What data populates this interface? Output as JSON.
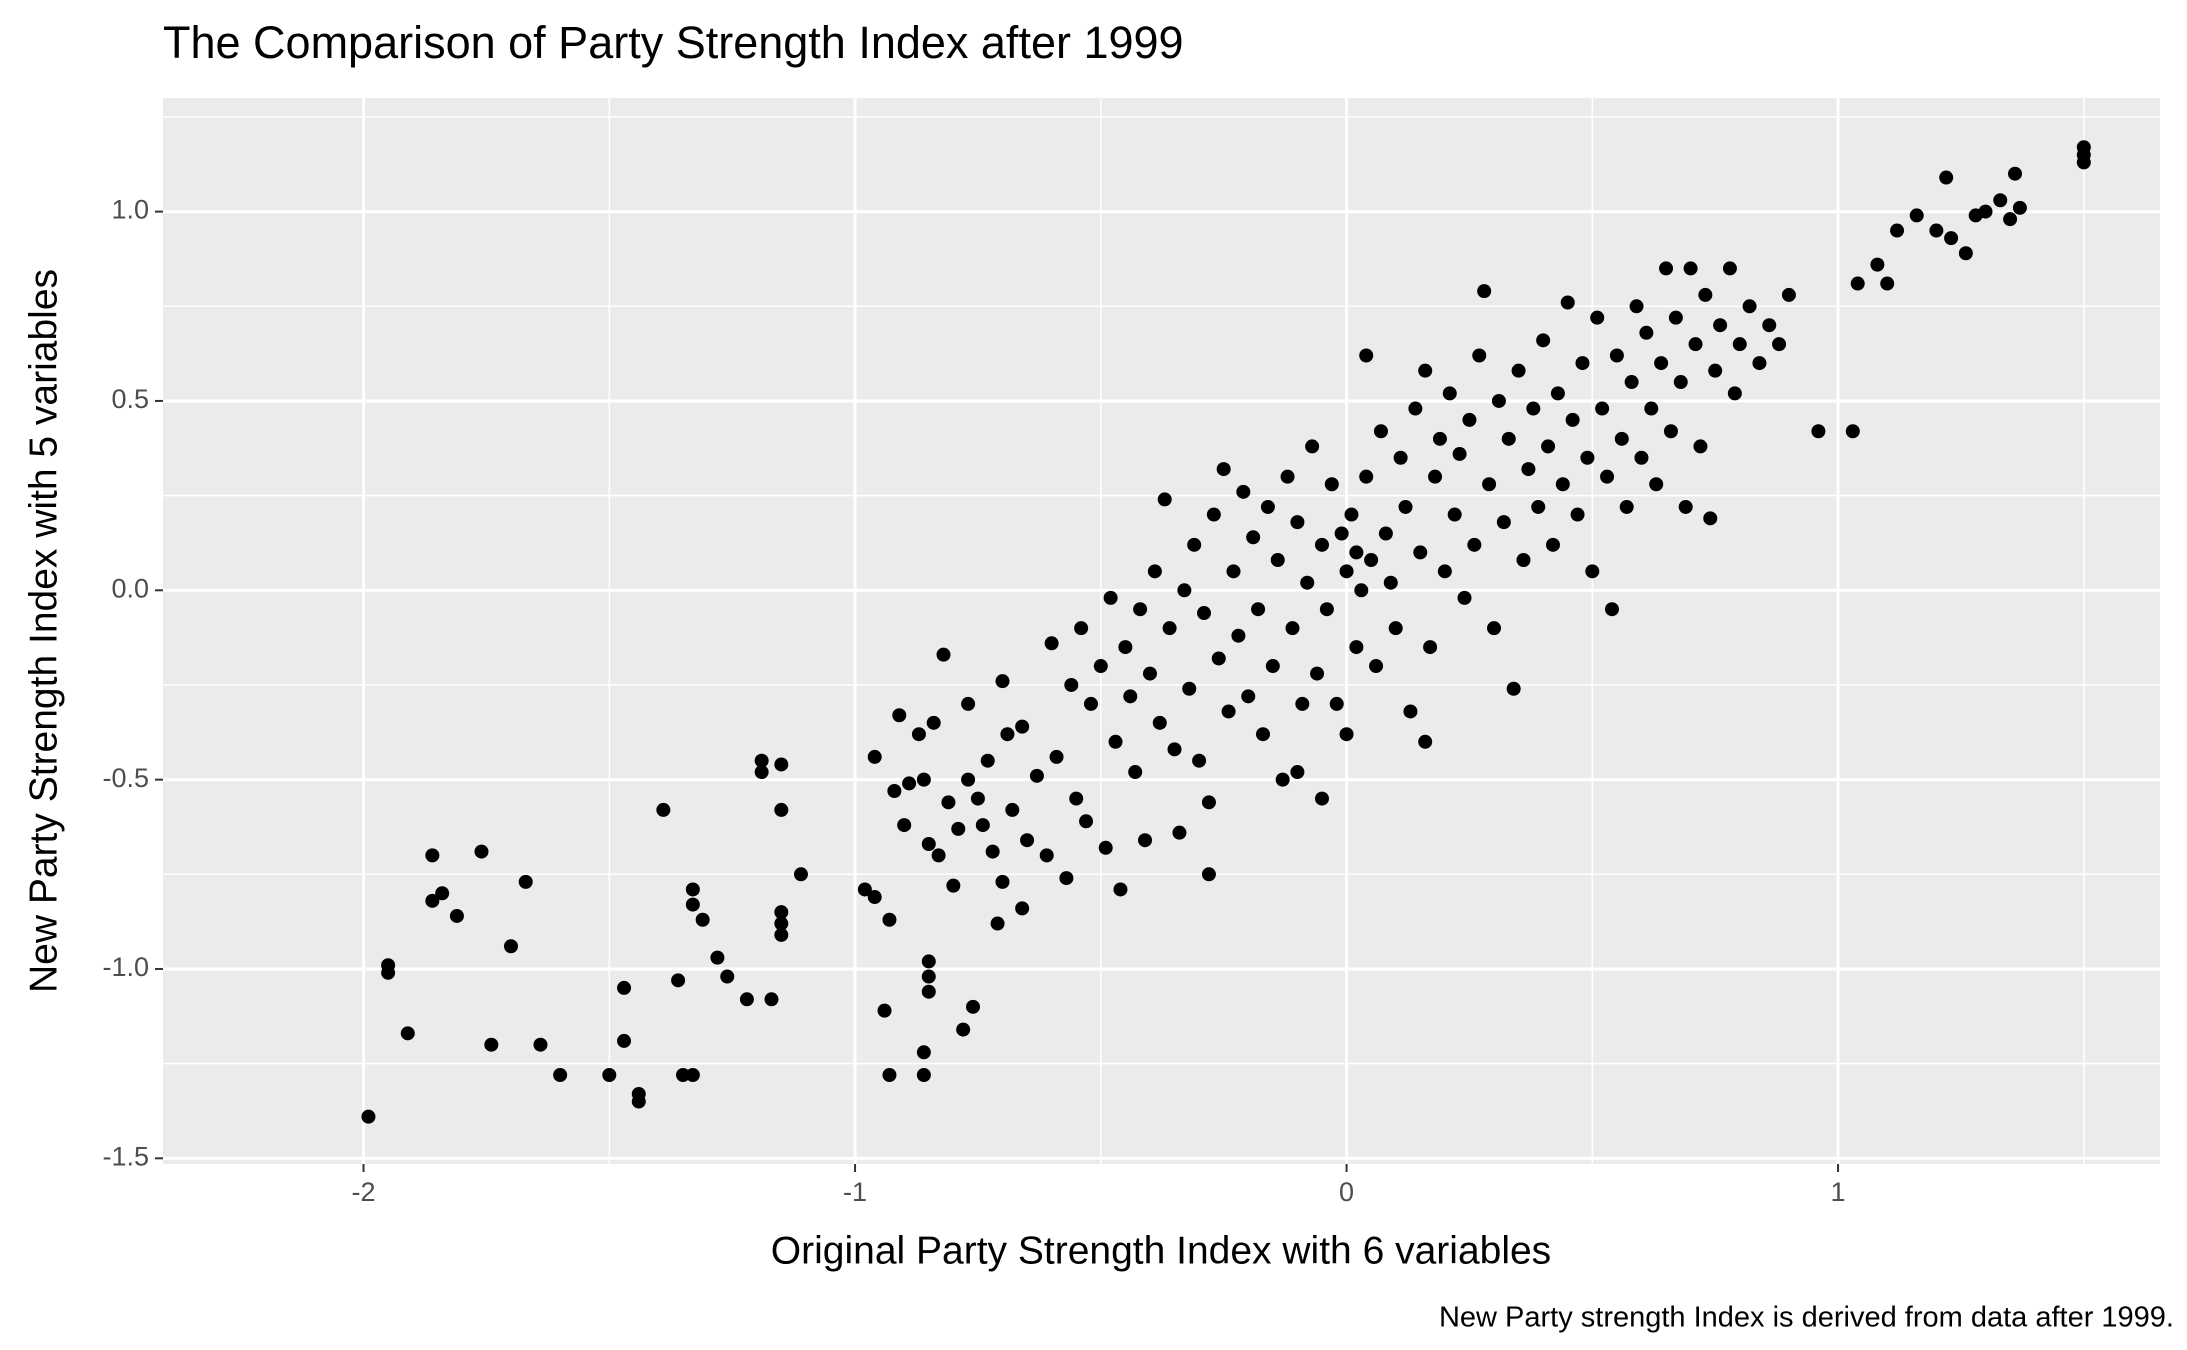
{
  "chart_data": {
    "type": "scatter",
    "title": "The Comparison of Party Strength Index after 1999",
    "x_label": "Original Party Strength Index with 6 variables",
    "y_label": "New Party Strength Index with 5 variables",
    "caption": "New Party strength Index is derived from data after 1999.",
    "color": "#000000",
    "grid": true,
    "xlim": [
      -2.408,
      1.655
    ],
    "ylim": [
      -1.515,
      1.3
    ],
    "xticks": [
      -2,
      -1,
      0,
      1
    ],
    "yticks": [
      -1.5,
      {
        "value": -1.0,
        "label": "-1.0"
      },
      -0.5,
      {
        "value": 0.0,
        "label": "0.0"
      },
      0.5,
      {
        "value": 1.0,
        "label": "1.0"
      }
    ],
    "x": [
      -1.99,
      -1.95,
      -1.95,
      -1.91,
      -1.86,
      -1.86,
      -1.84,
      -1.81,
      -1.76,
      -1.74,
      -1.7,
      -1.67,
      -1.64,
      -1.6,
      -1.5,
      -1.47,
      -1.47,
      -1.44,
      -1.44,
      -1.39,
      -1.36,
      -1.35,
      -1.33,
      -1.33,
      -1.33,
      -1.31,
      -1.28,
      -1.26,
      -1.22,
      -1.19,
      -1.19,
      -1.17,
      -1.15,
      -1.15,
      -1.15,
      -1.15,
      -1.15,
      -1.11,
      -0.98,
      -0.96,
      -0.96,
      -0.94,
      -0.93,
      -0.93,
      -0.92,
      -0.91,
      -0.9,
      -0.89,
      -0.87,
      -0.86,
      -0.86,
      -0.86,
      -0.85,
      -0.85,
      -0.85,
      -0.85,
      -0.84,
      -0.83,
      -0.82,
      -0.81,
      -0.8,
      -0.79,
      -0.78,
      -0.77,
      -0.77,
      -0.76,
      -0.75,
      -0.74,
      -0.73,
      -0.72,
      -0.71,
      -0.7,
      -0.7,
      -0.69,
      -0.68,
      -0.66,
      -0.66,
      -0.65,
      -0.63,
      -0.61,
      -0.6,
      -0.59,
      -0.57,
      -0.56,
      -0.55,
      -0.54,
      -0.53,
      -0.52,
      -0.5,
      -0.49,
      -0.48,
      -0.47,
      -0.46,
      -0.45,
      -0.44,
      -0.43,
      -0.42,
      -0.41,
      -0.4,
      -0.39,
      -0.38,
      -0.37,
      -0.36,
      -0.35,
      -0.34,
      -0.33,
      -0.32,
      -0.31,
      -0.3,
      -0.29,
      -0.28,
      -0.28,
      -0.27,
      -0.26,
      -0.25,
      -0.24,
      -0.23,
      -0.22,
      -0.21,
      -0.2,
      -0.19,
      -0.18,
      -0.17,
      -0.16,
      -0.15,
      -0.14,
      -0.13,
      -0.12,
      -0.11,
      -0.1,
      -0.1,
      -0.09,
      -0.08,
      -0.07,
      -0.06,
      -0.05,
      -0.05,
      -0.04,
      -0.03,
      -0.02,
      -0.01,
      0.0,
      0.0,
      0.01,
      0.02,
      0.02,
      0.03,
      0.04,
      0.04,
      0.05,
      0.06,
      0.07,
      0.08,
      0.09,
      0.1,
      0.11,
      0.12,
      0.13,
      0.14,
      0.15,
      0.16,
      0.16,
      0.17,
      0.18,
      0.19,
      0.2,
      0.21,
      0.22,
      0.23,
      0.24,
      0.25,
      0.26,
      0.27,
      0.28,
      0.29,
      0.3,
      0.31,
      0.32,
      0.33,
      0.34,
      0.35,
      0.36,
      0.37,
      0.38,
      0.39,
      0.4,
      0.41,
      0.42,
      0.43,
      0.44,
      0.45,
      0.46,
      0.47,
      0.48,
      0.49,
      0.5,
      0.51,
      0.52,
      0.53,
      0.54,
      0.55,
      0.56,
      0.57,
      0.58,
      0.59,
      0.6,
      0.61,
      0.62,
      0.63,
      0.64,
      0.65,
      0.66,
      0.67,
      0.68,
      0.69,
      0.7,
      0.71,
      0.72,
      0.73,
      0.74,
      0.75,
      0.76,
      0.78,
      0.79,
      0.8,
      0.82,
      0.84,
      0.86,
      0.88,
      0.9,
      0.96,
      1.03,
      1.04,
      1.08,
      1.1,
      1.12,
      1.16,
      1.2,
      1.22,
      1.23,
      1.26,
      1.28,
      1.3,
      1.33,
      1.35,
      1.36,
      1.37,
      1.5,
      1.5,
      1.5
    ],
    "values": [
      -1.39,
      -0.99,
      -1.01,
      -1.17,
      -0.7,
      -0.82,
      -0.8,
      -0.86,
      -0.69,
      -1.2,
      -0.94,
      -0.77,
      -1.2,
      -1.28,
      -1.28,
      -1.05,
      -1.19,
      -1.33,
      -1.35,
      -0.58,
      -1.03,
      -1.28,
      -1.28,
      -0.79,
      -0.83,
      -0.87,
      -0.97,
      -1.02,
      -1.08,
      -0.45,
      -0.48,
      -1.08,
      -0.46,
      -0.58,
      -0.85,
      -0.88,
      -0.91,
      -0.75,
      -0.79,
      -0.44,
      -0.81,
      -1.11,
      -1.28,
      -0.87,
      -0.53,
      -0.33,
      -0.62,
      -0.51,
      -0.38,
      -0.5,
      -1.22,
      -1.28,
      -0.98,
      -1.02,
      -1.06,
      -0.67,
      -0.35,
      -0.7,
      -0.17,
      -0.56,
      -0.78,
      -0.63,
      -1.16,
      -0.3,
      -0.5,
      -1.1,
      -0.55,
      -0.62,
      -0.45,
      -0.69,
      -0.88,
      -0.24,
      -0.77,
      -0.38,
      -0.58,
      -0.84,
      -0.36,
      -0.66,
      -0.49,
      -0.7,
      -0.14,
      -0.44,
      -0.76,
      -0.25,
      -0.55,
      -0.1,
      -0.61,
      -0.3,
      -0.2,
      -0.68,
      -0.02,
      -0.4,
      -0.79,
      -0.15,
      -0.28,
      -0.48,
      -0.05,
      -0.66,
      -0.22,
      0.05,
      -0.35,
      0.24,
      -0.1,
      -0.42,
      -0.64,
      0.0,
      -0.26,
      0.12,
      -0.45,
      -0.06,
      -0.56,
      -0.75,
      0.2,
      -0.18,
      0.32,
      -0.32,
      0.05,
      -0.12,
      0.26,
      -0.28,
      0.14,
      -0.05,
      -0.38,
      0.22,
      -0.2,
      0.08,
      -0.5,
      0.3,
      -0.1,
      0.18,
      -0.48,
      -0.3,
      0.02,
      0.38,
      -0.22,
      0.12,
      -0.55,
      -0.05,
      0.28,
      -0.3,
      0.15,
      0.05,
      -0.38,
      0.2,
      0.1,
      -0.15,
      0.0,
      0.62,
      0.3,
      0.08,
      -0.2,
      0.42,
      0.15,
      0.02,
      -0.1,
      0.35,
      0.22,
      -0.32,
      0.48,
      0.1,
      -0.4,
      0.58,
      -0.15,
      0.3,
      0.4,
      0.05,
      0.52,
      0.2,
      0.36,
      -0.02,
      0.45,
      0.12,
      0.62,
      0.79,
      0.28,
      -0.1,
      0.5,
      0.18,
      0.4,
      -0.26,
      0.58,
      0.08,
      0.32,
      0.48,
      0.22,
      0.66,
      0.38,
      0.12,
      0.52,
      0.28,
      0.76,
      0.45,
      0.2,
      0.6,
      0.35,
      0.05,
      0.72,
      0.48,
      0.3,
      -0.05,
      0.62,
      0.4,
      0.22,
      0.55,
      0.75,
      0.35,
      0.68,
      0.48,
      0.28,
      0.6,
      0.85,
      0.42,
      0.72,
      0.55,
      0.22,
      0.85,
      0.65,
      0.38,
      0.78,
      0.19,
      0.58,
      0.7,
      0.85,
      0.52,
      0.65,
      0.75,
      0.6,
      0.7,
      0.65,
      0.78,
      0.42,
      0.42,
      0.81,
      0.86,
      0.81,
      0.95,
      0.99,
      0.95,
      1.09,
      0.93,
      0.89,
      0.99,
      1.0,
      1.03,
      0.98,
      1.1,
      1.01,
      1.13,
      1.15,
      1.17
    ]
  }
}
